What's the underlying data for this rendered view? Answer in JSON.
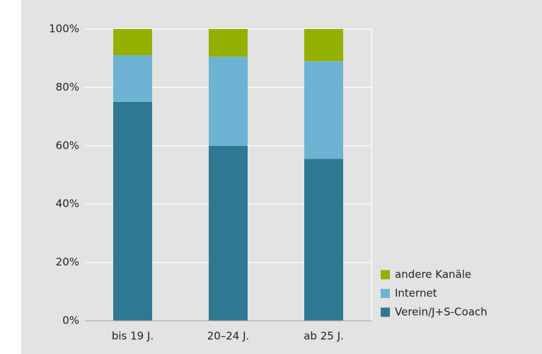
{
  "chart_data": {
    "type": "stacked_bar",
    "categories": [
      "bis 19 J.",
      "20–24 J.",
      "ab 25 J."
    ],
    "series": [
      {
        "name": "Verein/J+S-Coach",
        "color": "#2e7893",
        "values": [
          75,
          60,
          55.5
        ]
      },
      {
        "name": "Internet",
        "color": "#6db3d4",
        "values": [
          16,
          30.5,
          33.5
        ]
      },
      {
        "name": "andere Kanäle",
        "color": "#94b000",
        "values": [
          9,
          9.5,
          11
        ]
      }
    ],
    "ylim": [
      0,
      100
    ],
    "yticks": [
      {
        "value": 0,
        "label": "0%"
      },
      {
        "value": 20,
        "label": "20%"
      },
      {
        "value": 40,
        "label": "40%"
      },
      {
        "value": 60,
        "label": "60%"
      },
      {
        "value": 80,
        "label": "80%"
      },
      {
        "value": 100,
        "label": "100%"
      }
    ],
    "grid": true,
    "legend": "lower right"
  }
}
